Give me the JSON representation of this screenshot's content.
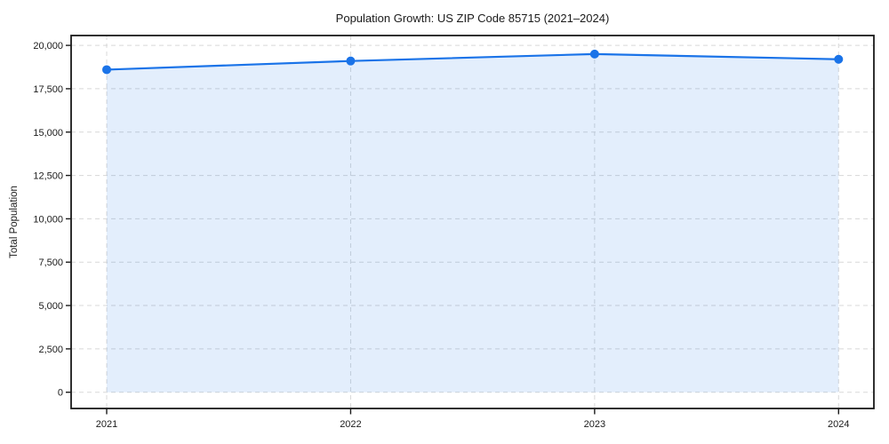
{
  "page": {
    "background_color": "#ffffff",
    "text_color": "#1a1a1a"
  },
  "chart_data": {
    "type": "area",
    "title": "Population Growth: US ZIP Code 85715 (2021–2024)",
    "xlabel": "",
    "ylabel": "Total Population",
    "x": [
      2021,
      2022,
      2023,
      2024
    ],
    "series": [
      {
        "name": "Total Population",
        "values": [
          18600,
          19100,
          19500,
          19200
        ]
      }
    ],
    "xtick_labels": [
      "2021",
      "2022",
      "2023",
      "2024"
    ],
    "ytick_values": [
      0,
      2500,
      5000,
      7500,
      10000,
      12500,
      15000,
      17500,
      20000
    ],
    "ytick_labels": [
      "0",
      "2,500",
      "5,000",
      "7,500",
      "10,000",
      "12,500",
      "15,000",
      "17,500",
      "20,000"
    ],
    "ylim": [
      0,
      20000
    ],
    "grid": "dashed",
    "legend": "none",
    "line_color": "#1a73e8",
    "marker_color": "#1a73e8",
    "fill_color": "#1a73e8",
    "fill_opacity": 0.12,
    "grid_color": "#d8d8d8",
    "axis_color": "#1a1a1a"
  }
}
